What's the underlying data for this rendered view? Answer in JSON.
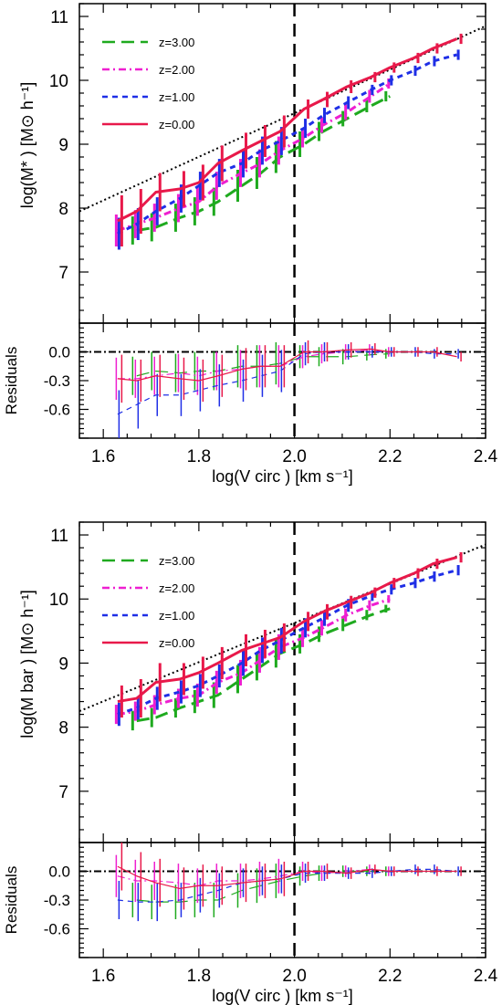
{
  "colors": {
    "z3": "#1faa1f",
    "z2": "#ee1fd0",
    "z1": "#1f2fe6",
    "z0": "#e8194a",
    "axis": "#000000",
    "ref": "#000000"
  },
  "chart_data": [
    {
      "type": "line",
      "panel": "top-main",
      "xlabel": "",
      "ylabel": "log(M* ) [M⊙ h⁻¹]",
      "xlim": [
        1.55,
        2.4
      ],
      "ylim": [
        6.2,
        11.2
      ],
      "yticks": [
        "7",
        "8",
        "9",
        "10",
        "11"
      ],
      "vline_x": 2.0,
      "reference_line": {
        "x": [
          1.55,
          2.4
        ],
        "y": [
          7.95,
          10.85
        ],
        "style": "dotted"
      },
      "legend": [
        "z=3.00",
        "z=2.00",
        "z=1.00",
        "z=0.00"
      ],
      "x": [
        1.63,
        1.67,
        1.71,
        1.76,
        1.8,
        1.84,
        1.89,
        1.93,
        1.97,
        2.02,
        2.06,
        2.11,
        2.16,
        2.2,
        2.25,
        2.29,
        2.34
      ],
      "series": [
        {
          "name": "z=3.00",
          "key": "z3",
          "dash": "dashed",
          "y": [
            null,
            7.65,
            7.7,
            7.85,
            7.95,
            8.1,
            8.35,
            8.55,
            8.8,
            9.0,
            9.2,
            9.4,
            9.6,
            9.75,
            null,
            null,
            null
          ],
          "err": [
            0,
            0.22,
            0.22,
            0.22,
            0.22,
            0.22,
            0.25,
            0.25,
            0.25,
            0.2,
            0.15,
            0.12,
            0.1,
            0.08,
            0,
            0,
            0
          ]
        },
        {
          "name": "z=2.00",
          "key": "z2",
          "dash": "dashdot",
          "y": [
            7.65,
            7.75,
            7.85,
            8.0,
            8.1,
            8.35,
            8.55,
            8.7,
            8.9,
            9.1,
            9.3,
            9.5,
            9.75,
            9.95,
            null,
            null,
            null
          ],
          "err": [
            0.25,
            0.22,
            0.22,
            0.22,
            0.22,
            0.22,
            0.22,
            0.22,
            0.22,
            0.15,
            0.12,
            0.12,
            0.1,
            0.08,
            0,
            0,
            0
          ]
        },
        {
          "name": "z=1.00",
          "key": "z1",
          "dash": "shortdash",
          "y": [
            7.6,
            7.75,
            7.95,
            8.15,
            8.35,
            8.55,
            8.7,
            8.9,
            9.05,
            9.25,
            9.45,
            9.65,
            9.85,
            10.0,
            10.15,
            10.3,
            10.4
          ],
          "err": [
            0.25,
            0.25,
            0.22,
            0.22,
            0.22,
            0.22,
            0.22,
            0.22,
            0.22,
            0.15,
            0.12,
            0.1,
            0.08,
            0.08,
            0.08,
            0.08,
            0.08
          ]
        },
        {
          "name": "z=0.00",
          "key": "z0",
          "dash": "solid",
          "y": [
            7.8,
            7.95,
            8.25,
            8.3,
            8.4,
            8.7,
            8.9,
            9.05,
            9.2,
            9.55,
            9.7,
            9.9,
            10.05,
            10.2,
            10.35,
            10.5,
            10.65
          ],
          "err": [
            0.4,
            0.35,
            0.3,
            0.28,
            0.28,
            0.28,
            0.28,
            0.25,
            0.25,
            0.15,
            0.12,
            0.1,
            0.08,
            0.08,
            0.08,
            0.08,
            0.08
          ]
        }
      ]
    },
    {
      "type": "line",
      "panel": "top-residuals",
      "xlabel": "log(V circ ) [km s⁻¹]",
      "ylabel": "Residuals",
      "xlim": [
        1.55,
        2.4
      ],
      "ylim": [
        -0.9,
        0.3
      ],
      "xticks": [
        "1.6",
        "1.8",
        "2.0",
        "2.2",
        "2.4"
      ],
      "yticks": [
        "0.0",
        "-0.3",
        "-0.6"
      ],
      "vline_x": 2.0,
      "zero_line": 0.0,
      "x": [
        1.63,
        1.67,
        1.71,
        1.76,
        1.8,
        1.84,
        1.89,
        1.93,
        1.97,
        2.02,
        2.06,
        2.11,
        2.16,
        2.2,
        2.25,
        2.29,
        2.34
      ],
      "series": [
        {
          "name": "z=3.00",
          "key": "z3",
          "dash": "dashed",
          "y": [
            null,
            -0.25,
            -0.2,
            -0.22,
            -0.2,
            -0.2,
            -0.15,
            -0.15,
            -0.12,
            -0.05,
            -0.05,
            -0.05,
            -0.03,
            -0.02,
            null,
            null,
            null
          ],
          "err": [
            0,
            0.2,
            0.2,
            0.2,
            0.2,
            0.2,
            0.22,
            0.22,
            0.22,
            0.12,
            0.1,
            0.08,
            0.06,
            0.05,
            0,
            0,
            0
          ]
        },
        {
          "name": "z=2.00",
          "key": "z2",
          "dash": "dashdot",
          "y": [
            -0.28,
            -0.28,
            -0.25,
            -0.22,
            -0.25,
            -0.2,
            -0.18,
            -0.15,
            -0.15,
            -0.05,
            -0.02,
            0.0,
            0.02,
            0.0,
            null,
            null,
            null
          ],
          "err": [
            0.22,
            0.2,
            0.2,
            0.2,
            0.2,
            0.2,
            0.2,
            0.22,
            0.22,
            0.12,
            0.1,
            0.08,
            0.06,
            0.05,
            0,
            0,
            0
          ]
        },
        {
          "name": "z=1.00",
          "key": "z1",
          "dash": "shortdash",
          "y": [
            -0.65,
            -0.55,
            -0.45,
            -0.45,
            -0.4,
            -0.35,
            -0.3,
            -0.25,
            -0.2,
            -0.02,
            0.0,
            0.0,
            0.0,
            0.0,
            0.0,
            -0.02,
            -0.02
          ],
          "err": [
            0.25,
            0.25,
            0.22,
            0.22,
            0.22,
            0.22,
            0.22,
            0.22,
            0.22,
            0.12,
            0.1,
            0.08,
            0.06,
            0.05,
            0.05,
            0.05,
            0.05
          ]
        },
        {
          "name": "z=0.00",
          "key": "z0",
          "dash": "solid",
          "y": [
            -0.28,
            -0.3,
            -0.25,
            -0.28,
            -0.3,
            -0.25,
            -0.18,
            -0.15,
            -0.15,
            0.0,
            0.0,
            0.02,
            0.03,
            0.0,
            0.0,
            0.0,
            -0.05
          ],
          "err": [
            0.25,
            0.22,
            0.22,
            0.22,
            0.22,
            0.22,
            0.22,
            0.22,
            0.22,
            0.12,
            0.1,
            0.08,
            0.06,
            0.05,
            0.05,
            0.05,
            0.05
          ]
        }
      ]
    },
    {
      "type": "line",
      "panel": "bottom-main",
      "xlabel": "",
      "ylabel": "log(M bar ) [M⊙ h⁻¹]",
      "xlim": [
        1.55,
        2.4
      ],
      "ylim": [
        6.2,
        11.2
      ],
      "yticks": [
        "7",
        "8",
        "9",
        "10",
        "11"
      ],
      "vline_x": 2.0,
      "reference_line": {
        "x": [
          1.55,
          2.4
        ],
        "y": [
          8.25,
          10.85
        ],
        "style": "dotted"
      },
      "legend": [
        "z=3.00",
        "z=2.00",
        "z=1.00",
        "z=0.00"
      ],
      "x": [
        1.63,
        1.67,
        1.71,
        1.76,
        1.8,
        1.84,
        1.89,
        1.93,
        1.97,
        2.02,
        2.06,
        2.11,
        2.16,
        2.2,
        2.25,
        2.29,
        2.34
      ],
      "series": [
        {
          "name": "z=3.00",
          "key": "z3",
          "dash": "dashed",
          "y": [
            null,
            8.1,
            8.15,
            8.3,
            8.4,
            8.5,
            8.75,
            8.95,
            9.15,
            9.3,
            9.45,
            9.6,
            9.75,
            9.85,
            null,
            null,
            null
          ],
          "err": [
            0,
            0.15,
            0.15,
            0.15,
            0.18,
            0.2,
            0.22,
            0.22,
            0.22,
            0.15,
            0.12,
            0.1,
            0.08,
            0.06,
            0,
            0,
            0
          ]
        },
        {
          "name": "z=2.00",
          "key": "z2",
          "dash": "dashdot",
          "y": [
            8.2,
            8.25,
            8.35,
            8.45,
            8.5,
            8.7,
            8.85,
            9.05,
            9.25,
            9.4,
            9.55,
            9.75,
            9.9,
            10.0,
            null,
            null,
            null
          ],
          "err": [
            0.15,
            0.15,
            0.15,
            0.15,
            0.18,
            0.18,
            0.2,
            0.2,
            0.2,
            0.15,
            0.12,
            0.1,
            0.08,
            0.06,
            0,
            0,
            0
          ]
        },
        {
          "name": "z=1.00",
          "key": "z1",
          "dash": "shortdash",
          "y": [
            8.2,
            8.3,
            8.45,
            8.55,
            8.65,
            8.8,
            9.0,
            9.2,
            9.35,
            9.55,
            9.7,
            9.9,
            10.05,
            10.15,
            10.25,
            10.35,
            10.45
          ],
          "err": [
            0.18,
            0.18,
            0.18,
            0.18,
            0.18,
            0.18,
            0.2,
            0.2,
            0.2,
            0.15,
            0.12,
            0.1,
            0.08,
            0.08,
            0.08,
            0.08,
            0.08
          ]
        },
        {
          "name": "z=0.00",
          "key": "z0",
          "dash": "solid",
          "y": [
            8.4,
            8.45,
            8.7,
            8.75,
            8.85,
            9.0,
            9.2,
            9.3,
            9.4,
            9.65,
            9.8,
            9.95,
            10.1,
            10.25,
            10.4,
            10.55,
            10.65
          ],
          "err": [
            0.25,
            0.3,
            0.3,
            0.25,
            0.25,
            0.25,
            0.25,
            0.22,
            0.22,
            0.15,
            0.12,
            0.1,
            0.08,
            0.08,
            0.08,
            0.08,
            0.08
          ]
        }
      ]
    },
    {
      "type": "line",
      "panel": "bottom-residuals",
      "xlabel": "log(V circ ) [km s⁻¹]",
      "ylabel": "Residuals",
      "xlim": [
        1.55,
        2.4
      ],
      "ylim": [
        -0.9,
        0.3
      ],
      "xticks": [
        "1.6",
        "1.8",
        "2.0",
        "2.2",
        "2.4"
      ],
      "yticks": [
        "0.0",
        "-0.3",
        "-0.6"
      ],
      "vline_x": 2.0,
      "zero_line": 0.0,
      "x": [
        1.63,
        1.67,
        1.71,
        1.76,
        1.8,
        1.84,
        1.89,
        1.93,
        1.97,
        2.02,
        2.06,
        2.11,
        2.16,
        2.2,
        2.25,
        2.29,
        2.34
      ],
      "series": [
        {
          "name": "z=3.00",
          "key": "z3",
          "dash": "dashed",
          "y": [
            null,
            -0.3,
            -0.32,
            -0.32,
            -0.3,
            -0.3,
            -0.2,
            -0.15,
            -0.1,
            -0.05,
            -0.02,
            0.0,
            0.0,
            0.0,
            null,
            null,
            null
          ],
          "err": [
            0,
            0.18,
            0.18,
            0.18,
            0.18,
            0.18,
            0.18,
            0.18,
            0.18,
            0.1,
            0.08,
            0.06,
            0.05,
            0.05,
            0,
            0,
            0
          ]
        },
        {
          "name": "z=2.00",
          "key": "z2",
          "dash": "dashdot",
          "y": [
            -0.05,
            -0.1,
            -0.1,
            -0.12,
            -0.15,
            -0.1,
            -0.1,
            -0.08,
            -0.05,
            0.0,
            -0.02,
            0.0,
            0.02,
            0.0,
            null,
            null,
            null
          ],
          "err": [
            0.22,
            0.22,
            0.2,
            0.2,
            0.18,
            0.18,
            0.18,
            0.18,
            0.18,
            0.1,
            0.08,
            0.06,
            0.05,
            0.05,
            0,
            0,
            0
          ]
        },
        {
          "name": "z=1.00",
          "key": "z1",
          "dash": "shortdash",
          "y": [
            -0.3,
            -0.32,
            -0.32,
            -0.3,
            -0.25,
            -0.2,
            -0.12,
            -0.1,
            -0.08,
            -0.02,
            -0.02,
            -0.02,
            -0.02,
            0.0,
            0.02,
            0.02,
            0.0
          ],
          "err": [
            0.2,
            0.2,
            0.2,
            0.18,
            0.18,
            0.18,
            0.15,
            0.15,
            0.15,
            0.1,
            0.08,
            0.06,
            0.05,
            0.05,
            0.05,
            0.05,
            0.05
          ]
        },
        {
          "name": "z=0.00",
          "key": "z0",
          "dash": "solid",
          "y": [
            0.05,
            -0.05,
            -0.12,
            -0.18,
            -0.15,
            -0.15,
            -0.12,
            -0.1,
            -0.08,
            0.0,
            0.0,
            -0.02,
            0.02,
            0.0,
            0.0,
            0.0,
            0.0
          ],
          "err": [
            0.25,
            0.25,
            0.25,
            0.22,
            0.22,
            0.2,
            0.2,
            0.18,
            0.18,
            0.1,
            0.08,
            0.06,
            0.05,
            0.05,
            0.05,
            0.05,
            0.05
          ]
        }
      ]
    }
  ]
}
